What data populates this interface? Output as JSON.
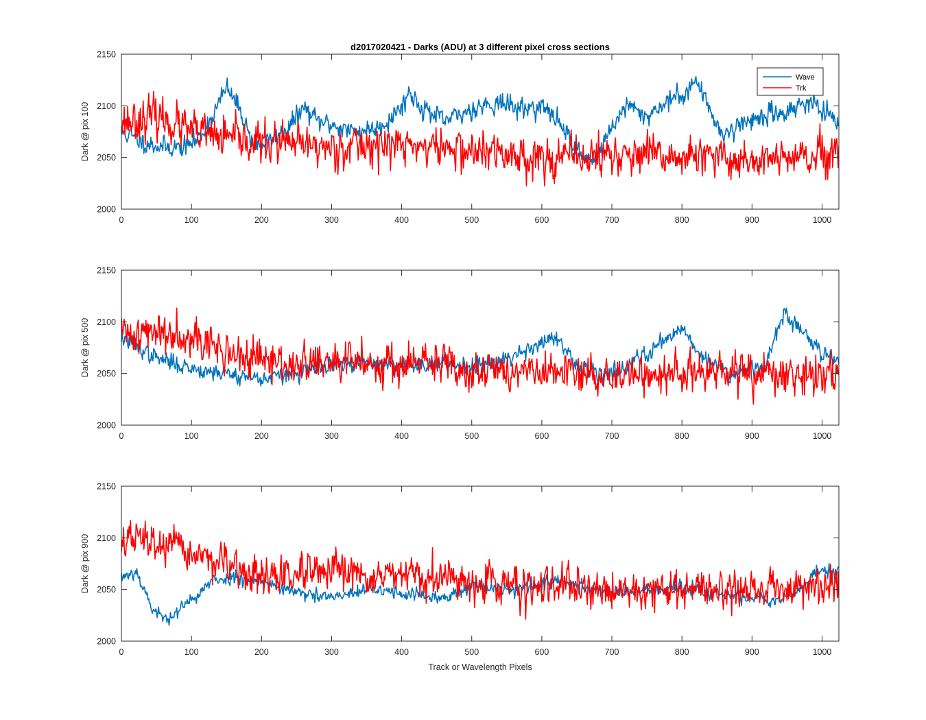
{
  "figure": {
    "title": "d2017020421 - Darks (ADU) at 3 different pixel cross sections",
    "xlabel": "Track or Wavelength Pixels",
    "legend": {
      "placement": "top-right",
      "entries": [
        "Wave",
        "Trk"
      ]
    }
  },
  "colors": {
    "Wave": "#0072bd",
    "Trk": "#ff0000",
    "axis": "#262626"
  },
  "chart_data": [
    {
      "type": "line",
      "ylabel": "Dark @ pix 100",
      "xlim": [
        0,
        1024
      ],
      "ylim": [
        2000,
        2150
      ],
      "xticks": [
        0,
        100,
        200,
        300,
        400,
        500,
        600,
        700,
        800,
        900,
        1000
      ],
      "yticks": [
        2000,
        2050,
        2100,
        2150
      ],
      "grid": false,
      "series": [
        {
          "name": "Wave",
          "x": [
            0,
            30,
            60,
            90,
            110,
            130,
            150,
            170,
            190,
            210,
            240,
            260,
            280,
            300,
            330,
            360,
            380,
            400,
            410,
            430,
            460,
            480,
            510,
            540,
            570,
            600,
            630,
            660,
            680,
            700,
            720,
            750,
            780,
            800,
            820,
            840,
            860,
            890,
            920,
            950,
            980,
            1000,
            1024
          ],
          "values": [
            2075,
            2065,
            2060,
            2060,
            2068,
            2090,
            2118,
            2095,
            2060,
            2065,
            2080,
            2098,
            2085,
            2082,
            2075,
            2078,
            2085,
            2100,
            2113,
            2098,
            2085,
            2090,
            2100,
            2103,
            2097,
            2100,
            2080,
            2048,
            2052,
            2080,
            2100,
            2090,
            2105,
            2110,
            2125,
            2095,
            2072,
            2085,
            2090,
            2095,
            2105,
            2095,
            2080
          ],
          "noise": 6,
          "seed": 11
        },
        {
          "name": "Trk",
          "x": [
            0,
            50,
            100,
            150,
            200,
            250,
            300,
            350,
            400,
            450,
            500,
            600,
            650,
            700,
            800,
            900,
            1024
          ],
          "values": [
            2085,
            2090,
            2075,
            2068,
            2064,
            2062,
            2060,
            2062,
            2062,
            2060,
            2056,
            2050,
            2050,
            2052,
            2050,
            2048,
            2050
          ],
          "noise": 12,
          "seed": 23
        }
      ]
    },
    {
      "type": "line",
      "ylabel": "Dark @ pix 500",
      "xlim": [
        0,
        1024
      ],
      "ylim": [
        2000,
        2150
      ],
      "xticks": [
        0,
        100,
        200,
        300,
        400,
        500,
        600,
        700,
        800,
        900,
        1000
      ],
      "yticks": [
        2000,
        2050,
        2100,
        2150
      ],
      "grid": false,
      "series": [
        {
          "name": "Wave",
          "x": [
            0,
            50,
            100,
            150,
            200,
            250,
            300,
            350,
            400,
            450,
            500,
            550,
            600,
            620,
            650,
            700,
            740,
            770,
            800,
            830,
            870,
            920,
            945,
            980,
            1000,
            1024
          ],
          "values": [
            2085,
            2065,
            2055,
            2050,
            2045,
            2050,
            2058,
            2060,
            2058,
            2060,
            2058,
            2065,
            2080,
            2085,
            2055,
            2050,
            2065,
            2080,
            2095,
            2065,
            2050,
            2060,
            2108,
            2085,
            2070,
            2065
          ],
          "noise": 5,
          "seed": 37
        },
        {
          "name": "Trk",
          "x": [
            0,
            50,
            100,
            130,
            160,
            200,
            250,
            300,
            350,
            400,
            450,
            500,
            600,
            700,
            800,
            900,
            950,
            1024
          ],
          "values": [
            2088,
            2090,
            2090,
            2075,
            2068,
            2062,
            2058,
            2060,
            2062,
            2058,
            2060,
            2055,
            2050,
            2048,
            2050,
            2050,
            2046,
            2052
          ],
          "noise": 12,
          "seed": 41
        }
      ]
    },
    {
      "type": "line",
      "ylabel": "Dark @ pix 900",
      "xlim": [
        0,
        1024
      ],
      "ylim": [
        2000,
        2150
      ],
      "xticks": [
        0,
        100,
        200,
        300,
        400,
        500,
        600,
        700,
        800,
        900,
        1000
      ],
      "yticks": [
        2000,
        2050,
        2100,
        2150
      ],
      "grid": false,
      "series": [
        {
          "name": "Wave",
          "x": [
            0,
            20,
            30,
            45,
            60,
            80,
            100,
            130,
            160,
            200,
            260,
            300,
            360,
            420,
            460,
            500,
            560,
            620,
            680,
            740,
            800,
            860,
            920,
            960,
            1000,
            1024
          ],
          "values": [
            2062,
            2068,
            2055,
            2030,
            2022,
            2028,
            2040,
            2058,
            2062,
            2058,
            2045,
            2042,
            2050,
            2045,
            2040,
            2055,
            2050,
            2058,
            2050,
            2048,
            2052,
            2045,
            2040,
            2045,
            2070,
            2065
          ],
          "noise": 4,
          "seed": 53
        },
        {
          "name": "Trk",
          "x": [
            0,
            20,
            60,
            100,
            130,
            160,
            200,
            300,
            400,
            500,
            600,
            700,
            800,
            900,
            1024
          ],
          "values": [
            2095,
            2100,
            2092,
            2085,
            2080,
            2068,
            2062,
            2065,
            2062,
            2058,
            2052,
            2050,
            2050,
            2050,
            2055
          ],
          "noise": 11,
          "seed": 67
        }
      ]
    }
  ]
}
